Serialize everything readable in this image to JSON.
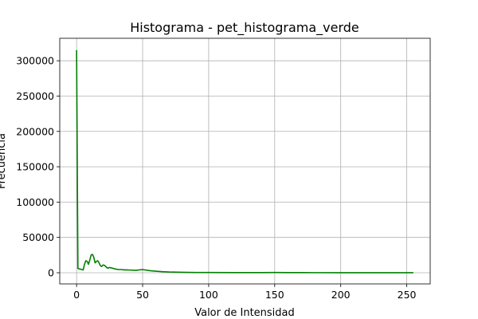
{
  "chart_data": {
    "type": "line",
    "title": "Histograma - pet_histograma_verde",
    "xlabel": "Valor de Intensidad",
    "ylabel": "Frecuencia",
    "xlim": [
      -12.75,
      267.75
    ],
    "ylim": [
      -15800,
      331800
    ],
    "xticks": [
      0,
      50,
      100,
      150,
      200,
      250
    ],
    "yticks": [
      0,
      50000,
      100000,
      150000,
      200000,
      250000,
      300000
    ],
    "grid": true,
    "series": [
      {
        "color": "#008000",
        "x": [
          0,
          1,
          2,
          3,
          4,
          5,
          6,
          7,
          8,
          9,
          10,
          11,
          12,
          13,
          14,
          15,
          16,
          17,
          18,
          19,
          20,
          21,
          22,
          23,
          24,
          25,
          26,
          27,
          28,
          29,
          30,
          32,
          34,
          36,
          38,
          40,
          45,
          50,
          55,
          60,
          65,
          70,
          80,
          90,
          100,
          120,
          140,
          150,
          160,
          180,
          200,
          220,
          240,
          255
        ],
        "y": [
          315000,
          6000,
          5500,
          5000,
          4500,
          4000,
          12000,
          17000,
          16000,
          12000,
          18000,
          25000,
          26000,
          22000,
          14000,
          16000,
          17000,
          14000,
          10000,
          9000,
          11000,
          10500,
          9000,
          7000,
          6500,
          7500,
          7000,
          6500,
          6000,
          5500,
          5000,
          4500,
          4500,
          4000,
          4000,
          3800,
          3500,
          4500,
          3000,
          2200,
          1500,
          1000,
          600,
          400,
          300,
          250,
          250,
          300,
          200,
          150,
          100,
          80,
          50,
          30
        ]
      }
    ]
  }
}
